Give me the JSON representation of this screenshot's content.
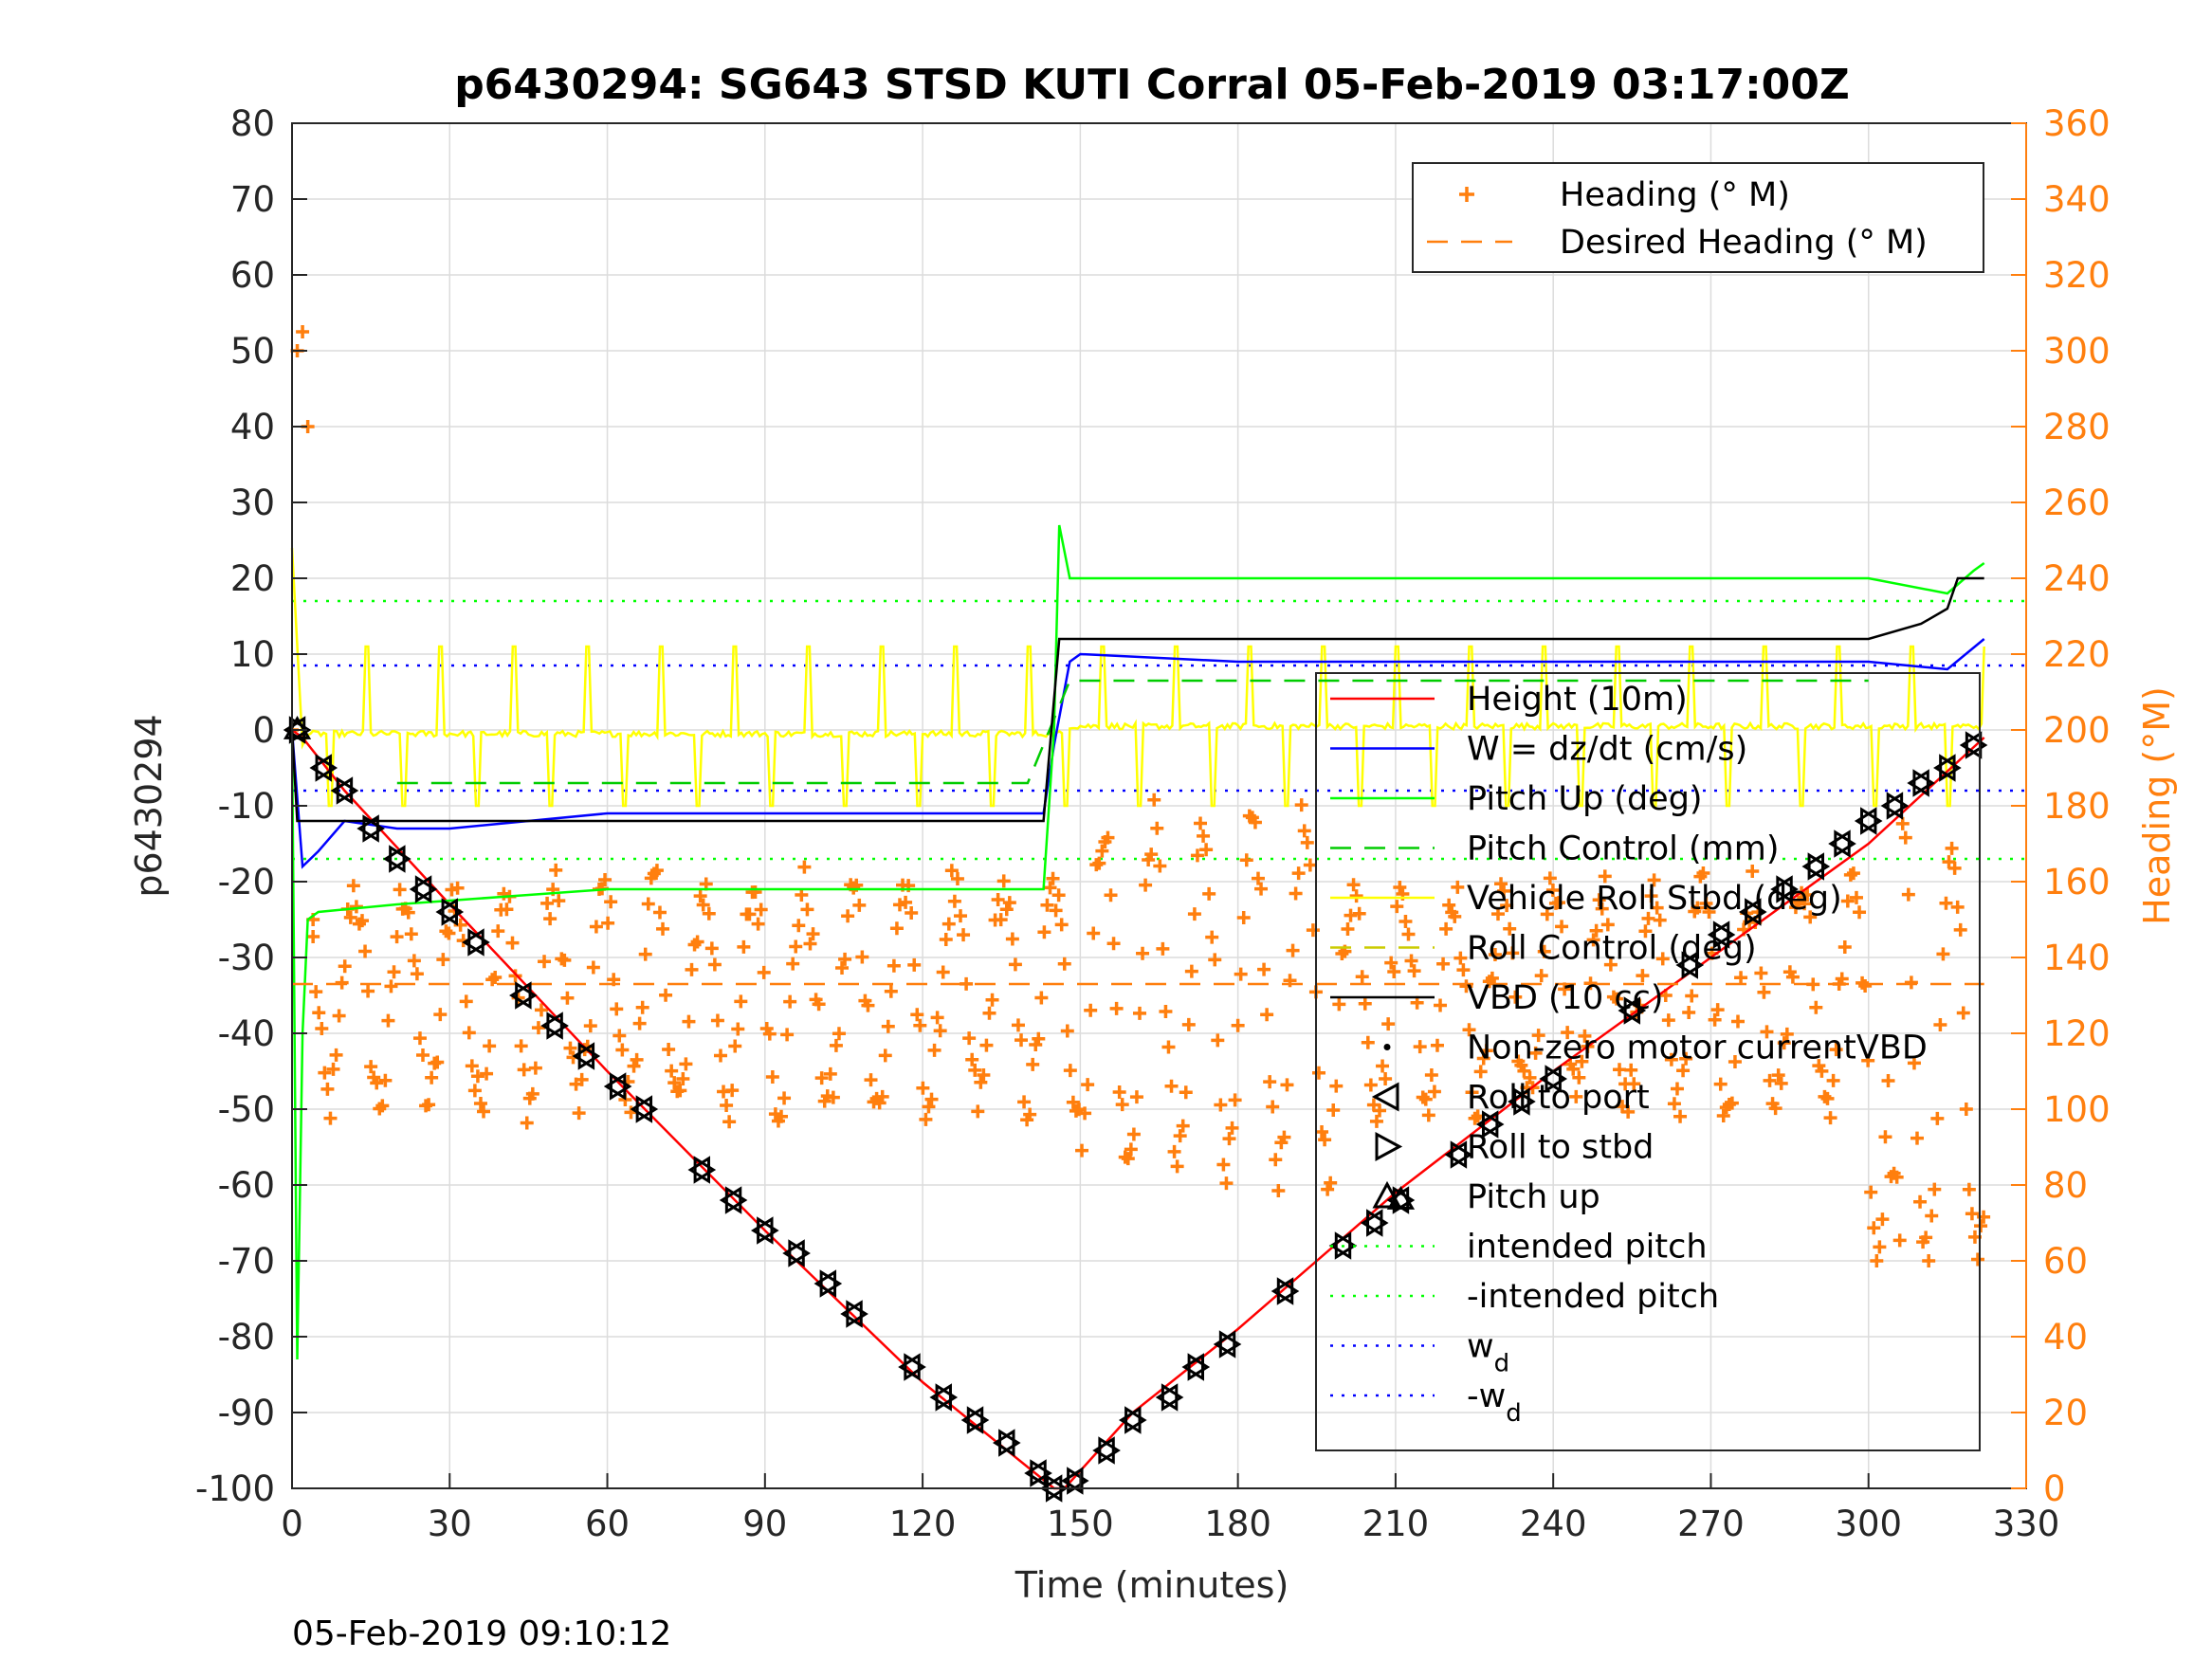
{
  "chart_data": {
    "type": "line",
    "title": "p6430294: SG643 STSD KUTI Corral 05-Feb-2019 03:17:00Z",
    "xlabel": "Time (minutes)",
    "ylabel_left": "p6430294",
    "ylabel_right": "Heading (°M)",
    "xlim": [
      0,
      330
    ],
    "ylim_left": [
      -100,
      80
    ],
    "ylim_right": [
      0,
      360
    ],
    "xticks": [
      "0",
      "30",
      "60",
      "90",
      "120",
      "150",
      "180",
      "210",
      "240",
      "270",
      "300",
      "330"
    ],
    "yticks_left": [
      "80",
      "70",
      "60",
      "50",
      "40",
      "30",
      "20",
      "10",
      "0",
      "-10",
      "-20",
      "-30",
      "-40",
      "-50",
      "-60",
      "-70",
      "-80",
      "-90",
      "-100"
    ],
    "yticks_right": [
      "360",
      "340",
      "320",
      "300",
      "280",
      "260",
      "240",
      "220",
      "200",
      "180",
      "160",
      "140",
      "120",
      "100",
      "80",
      "60",
      "40",
      "20",
      "0"
    ],
    "grid": true,
    "timestamp": "05-Feb-2019 09:10:12",
    "legend_heading": [
      {
        "label": "Heading (° M)",
        "color": "#ff7f0e",
        "style": "plus"
      },
      {
        "label": "Desired Heading (° M)",
        "color": "#ff7f0e",
        "style": "dashed"
      }
    ],
    "legend_main": [
      {
        "label": "Height (10m)",
        "color": "#ff0000",
        "style": "solid"
      },
      {
        "label": "W = dz/dt (cm/s)",
        "color": "#0000ff",
        "style": "solid"
      },
      {
        "label": "Pitch Up (deg)",
        "color": "#00ff00",
        "style": "solid"
      },
      {
        "label": "Pitch Control (mm)",
        "color": "#00cc00",
        "style": "dashed"
      },
      {
        "label": "Vehicle Roll Stbd (deg)",
        "color": "#ffff00",
        "style": "solid"
      },
      {
        "label": "Roll Control (deg)",
        "color": "#cccc00",
        "style": "dashed"
      },
      {
        "label": "VBD (10 cc)",
        "color": "#000000",
        "style": "solid"
      },
      {
        "label": "Non-zero motor currentVBD",
        "color": "#000000",
        "style": "dot"
      },
      {
        "label": "Roll to port",
        "color": "#000000",
        "style": "tri-left"
      },
      {
        "label": "Roll to stbd",
        "color": "#000000",
        "style": "tri-right"
      },
      {
        "label": "Pitch up",
        "color": "#000000",
        "style": "tri-up"
      },
      {
        "label": "intended pitch",
        "color": "#00ff00",
        "style": "dotted"
      },
      {
        "label": "-intended pitch",
        "color": "#00ff00",
        "style": "dotted"
      },
      {
        "label": "w",
        "sub": "d",
        "color": "#0000ff",
        "style": "dotted"
      },
      {
        "label": "-w",
        "sub": "d",
        "color": "#0000ff",
        "style": "dotted"
      }
    ],
    "series": [
      {
        "name": "Height (10m)",
        "color": "#ff0000",
        "x": [
          0,
          2,
          10,
          30,
          60,
          90,
          120,
          145,
          147,
          160,
          180,
          210,
          240,
          270,
          300,
          322
        ],
        "y": [
          0,
          -1,
          -8,
          -23,
          -45,
          -66,
          -86,
          -100,
          -100,
          -90,
          -79,
          -61,
          -45,
          -30,
          -15,
          -1
        ]
      },
      {
        "name": "W = dz/dt (cm/s)",
        "color": "#0000ff",
        "x": [
          0,
          2,
          5,
          10,
          20,
          30,
          45,
          60,
          90,
          120,
          143,
          145,
          148,
          150,
          180,
          210,
          240,
          270,
          300,
          315,
          322
        ],
        "y": [
          0,
          -18,
          -16,
          -12,
          -13,
          -13,
          -12,
          -11,
          -11,
          -11,
          -11,
          -2,
          9,
          10,
          9,
          9,
          9,
          9,
          9,
          8,
          12
        ]
      },
      {
        "name": "Pitch Up (deg)",
        "color": "#00ff00",
        "x": [
          0,
          1,
          2,
          3,
          5,
          20,
          40,
          60,
          90,
          120,
          143,
          145,
          146,
          148,
          150,
          180,
          210,
          240,
          270,
          300,
          315,
          320,
          322
        ],
        "y": [
          0,
          -83,
          -40,
          -25,
          -24,
          -23,
          -22,
          -21,
          -21,
          -21,
          -21,
          0,
          27,
          20,
          20,
          20,
          20,
          20,
          20,
          20,
          18,
          21,
          22
        ]
      },
      {
        "name": "Pitch Control (mm)",
        "color": "#00cc00",
        "dash": "22,14",
        "x": [
          20,
          140,
          148,
          300
        ],
        "y": [
          -7,
          -7,
          6.5,
          6.5
        ]
      },
      {
        "name": "VBD (10 cc)",
        "color": "#000000",
        "x": [
          0,
          1,
          2,
          20,
          60,
          120,
          143,
          146,
          150,
          200,
          250,
          300,
          310,
          315,
          317,
          322
        ],
        "y": [
          0,
          -12,
          -12,
          -12,
          -12,
          -12,
          -12,
          12,
          12,
          12,
          12,
          12,
          14,
          16,
          20,
          20
        ]
      },
      {
        "name": "Desired Heading (° M)",
        "color": "#ff7f0e",
        "dash": "22,14",
        "axis": "right",
        "x": [
          0,
          322
        ],
        "y": [
          133,
          133
        ]
      }
    ],
    "reference_lines": [
      {
        "name": "intended pitch",
        "y": 17,
        "color": "#00ff00"
      },
      {
        "name": "-intended pitch",
        "y": -17,
        "color": "#00ff00"
      },
      {
        "name": "w_d",
        "y": 8.5,
        "color": "#0000ff"
      },
      {
        "name": "-w_d",
        "y": -8,
        "color": "#0000ff"
      }
    ],
    "roll_series": {
      "name": "Vehicle Roll Stbd (deg)",
      "color": "#ffff00",
      "baseline_dive": -0.5,
      "baseline_climb": 0.5,
      "spike_up": 11,
      "spike_down": -10
    },
    "heading_series": {
      "name": "Heading (° M)",
      "color": "#ff7f0e",
      "axis": "right",
      "initial": {
        "x": [
          0,
          1,
          2,
          3,
          4
        ],
        "y": [
          200,
          300,
          305,
          280,
          150
        ]
      },
      "min_deg": 60,
      "max_deg": 305
    },
    "markers": [
      {
        "x": 1,
        "y": 0
      },
      {
        "x": 6,
        "y": -5
      },
      {
        "x": 10,
        "y": -8
      },
      {
        "x": 15,
        "y": -13
      },
      {
        "x": 20,
        "y": -17
      },
      {
        "x": 25,
        "y": -21
      },
      {
        "x": 30,
        "y": -24
      },
      {
        "x": 35,
        "y": -28
      },
      {
        "x": 44,
        "y": -35
      },
      {
        "x": 50,
        "y": -39
      },
      {
        "x": 56,
        "y": -43
      },
      {
        "x": 62,
        "y": -47
      },
      {
        "x": 67,
        "y": -50
      },
      {
        "x": 78,
        "y": -58
      },
      {
        "x": 84,
        "y": -62
      },
      {
        "x": 90,
        "y": -66
      },
      {
        "x": 96,
        "y": -69
      },
      {
        "x": 102,
        "y": -73
      },
      {
        "x": 107,
        "y": -77
      },
      {
        "x": 118,
        "y": -84
      },
      {
        "x": 124,
        "y": -88
      },
      {
        "x": 130,
        "y": -91
      },
      {
        "x": 136,
        "y": -94
      },
      {
        "x": 142,
        "y": -98
      },
      {
        "x": 145,
        "y": -100
      },
      {
        "x": 149,
        "y": -99
      },
      {
        "x": 155,
        "y": -95
      },
      {
        "x": 160,
        "y": -91
      },
      {
        "x": 167,
        "y": -88
      },
      {
        "x": 172,
        "y": -84
      },
      {
        "x": 178,
        "y": -81
      },
      {
        "x": 189,
        "y": -74
      },
      {
        "x": 200,
        "y": -68
      },
      {
        "x": 206,
        "y": -65
      },
      {
        "x": 211,
        "y": -62
      },
      {
        "x": 222,
        "y": -56
      },
      {
        "x": 228,
        "y": -52
      },
      {
        "x": 234,
        "y": -49
      },
      {
        "x": 240,
        "y": -46
      },
      {
        "x": 255,
        "y": -37
      },
      {
        "x": 266,
        "y": -31
      },
      {
        "x": 272,
        "y": -27
      },
      {
        "x": 278,
        "y": -24
      },
      {
        "x": 284,
        "y": -21
      },
      {
        "x": 290,
        "y": -18
      },
      {
        "x": 295,
        "y": -15
      },
      {
        "x": 300,
        "y": -12
      },
      {
        "x": 305,
        "y": -10
      },
      {
        "x": 310,
        "y": -7
      },
      {
        "x": 315,
        "y": -5
      },
      {
        "x": 320,
        "y": -2
      }
    ]
  }
}
